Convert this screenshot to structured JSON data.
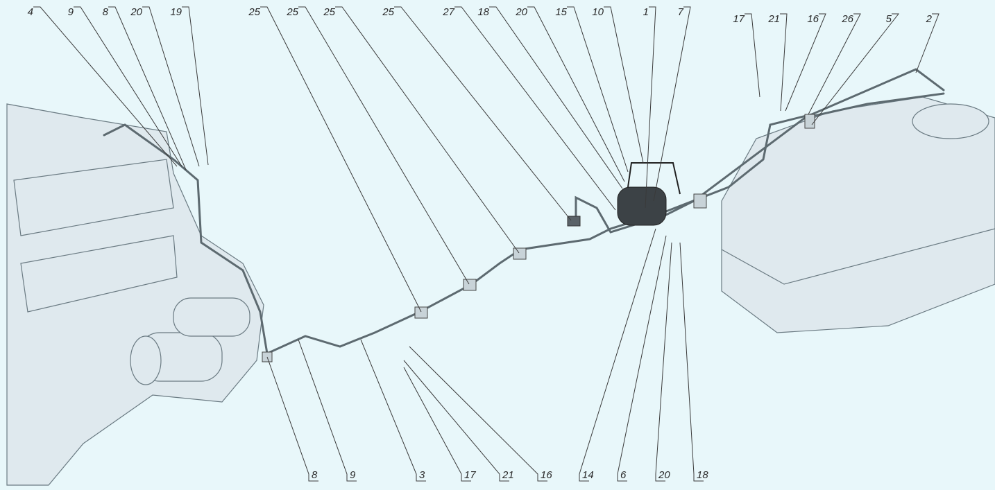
{
  "callouts_top": [
    "4",
    "9",
    "8",
    "20",
    "19",
    "25",
    "25",
    "25",
    "25",
    "27",
    "18",
    "20",
    "15",
    "10",
    "1",
    "7",
    "17",
    "21",
    "16",
    "26",
    "5",
    "2"
  ],
  "callouts_bottom": [
    "8",
    "9",
    "3",
    "17",
    "21",
    "16",
    "14",
    "6",
    "20",
    "18"
  ]
}
